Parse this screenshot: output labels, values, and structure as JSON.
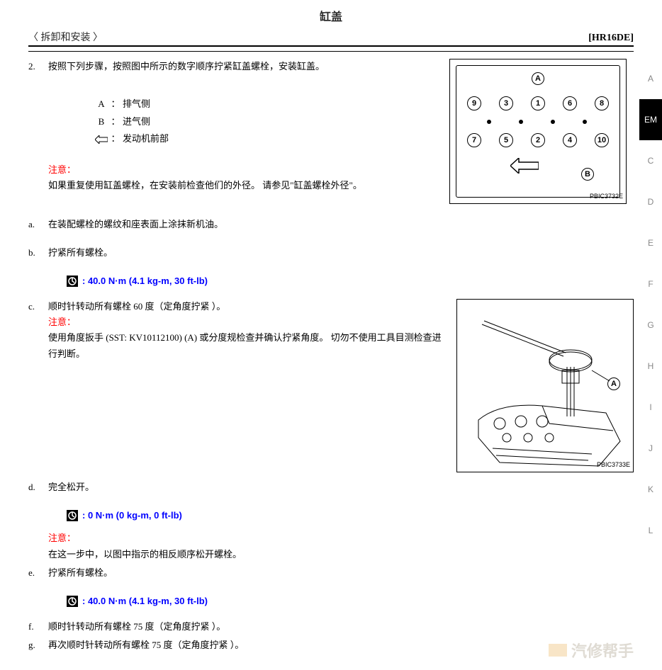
{
  "title": "缸盖",
  "nav_left": "〈 拆卸和安装 〉",
  "nav_right": "[HR16DE]",
  "step2_num": "2.",
  "step2_text": "按照下列步骤，按照图中所示的数字顺序拧紧缸盖螺栓，安装缸盖。",
  "legend": {
    "a_key": "A",
    "a_val": "排气侧",
    "b_key": "B",
    "b_val": "进气侧",
    "arrow_val": "发动机前部"
  },
  "caution2_label": "注意：",
  "caution2_text": "如果重复使用缸盖螺栓，在安装前检查他们的外径。 请参见\"缸盖螺栓外径\"。",
  "fig1": {
    "code": "PBIC3732E",
    "label_a": "A",
    "label_b": "B",
    "bolts": [
      "9",
      "3",
      "1",
      "6",
      "8",
      "7",
      "5",
      "2",
      "4",
      "10"
    ]
  },
  "sub_a_num": "a.",
  "sub_a_text": "在装配螺栓的螺纹和座表面上涂抹新机油。",
  "sub_b_num": "b.",
  "sub_b_text": "拧紧所有螺栓。",
  "torque1": ": 40.0 N·m (4.1 kg-m, 30 ft-lb)",
  "sub_c_num": "c.",
  "sub_c_text": "顺时针转动所有螺栓 60 度（定角度拧紧 ）。",
  "caution_c_label": "注意：",
  "caution_c_text": "使用角度扳手 (SST: KV10112100) (A) 或分度规检查并确认拧紧角度。 切勿不使用工具目测检查进行判断。",
  "fig2": {
    "code": "PBIC3733E",
    "label_a": "A"
  },
  "sub_d_num": "d.",
  "sub_d_text": "完全松开。",
  "torque2": ": 0 N·m (0 kg-m, 0 ft-lb)",
  "caution_d_label": "注意：",
  "caution_d_text": "在这一步中，以图中指示的相反顺序松开螺栓。",
  "sub_e_num": "e.",
  "sub_e_text": "拧紧所有螺栓。",
  "torque3": ": 40.0 N·m (4.1 kg-m, 30 ft-lb)",
  "sub_f_num": "f.",
  "sub_f_text": " 顺时针转动所有螺栓 75 度（定角度拧紧 ）。",
  "sub_g_num": "g.",
  "sub_g_text": " 再次顺时针转动所有螺栓 75 度（定角度拧紧 ）。",
  "side_tabs": [
    "A",
    "EM",
    "C",
    "D",
    "E",
    "F",
    "G",
    "H",
    "I",
    "J",
    "K",
    "L"
  ],
  "side_active": "EM",
  "watermark": "汽修帮手",
  "colors": {
    "caution": "#ff0000",
    "torque": "#0000ff"
  }
}
